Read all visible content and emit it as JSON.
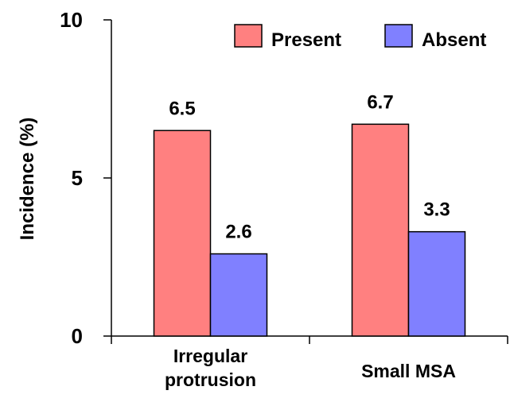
{
  "chart_data": {
    "type": "bar",
    "title": "",
    "xlabel": "",
    "ylabel": "Incidence (%)",
    "ylim": [
      0,
      10
    ],
    "yticks": [
      "0",
      "5",
      "10"
    ],
    "categories": [
      {
        "lines": [
          "Irregular",
          "protrusion"
        ]
      },
      {
        "lines": [
          "Small MSA"
        ]
      }
    ],
    "series": [
      {
        "name": "Present",
        "color": "#ff8080",
        "values": [
          6.5,
          6.7
        ],
        "labels": [
          "6.5",
          "6.7"
        ]
      },
      {
        "name": "Absent",
        "color": "#8080ff",
        "values": [
          2.6,
          3.3
        ],
        "labels": [
          "2.6",
          "3.3"
        ]
      }
    ],
    "legend_position": "top-right",
    "grid": false
  }
}
